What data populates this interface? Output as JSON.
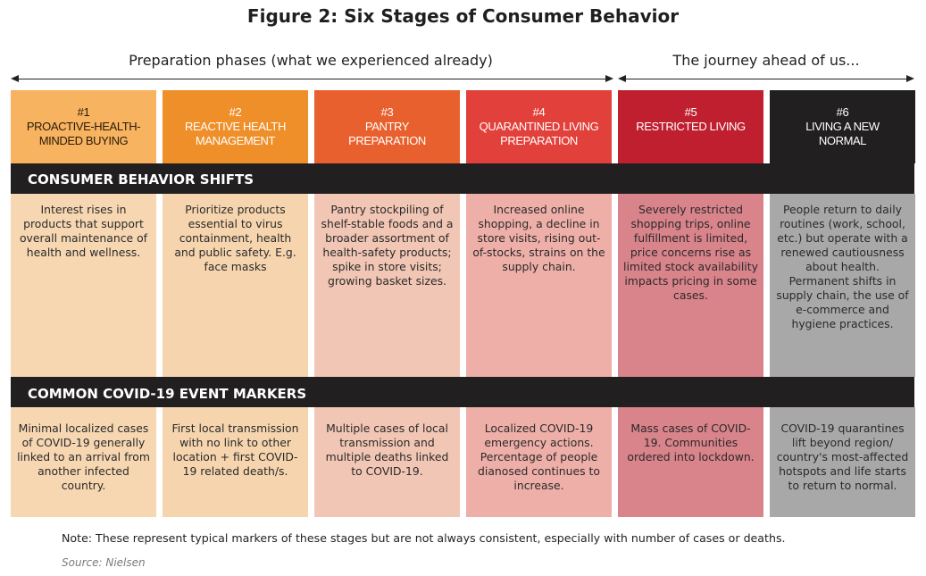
{
  "title": "Figure 2: Six Stages of Consumer Behavior",
  "phases": {
    "left": "Preparation phases (what we experienced already)",
    "right": "The journey ahead of us..."
  },
  "stages": [
    {
      "number": "#1",
      "name": "Proactive-health-minded buying",
      "header_color": "#f7b35f",
      "text_color": "#2a1a0a",
      "shift": "Interest rises in products that support overall maintenance of health and wellness.",
      "marker": "Minimal localized cases of COVID-19 generally linked to an arrival from another infected country.",
      "body_color": "#f7d7b2"
    },
    {
      "number": "#2",
      "name": "Reactive health management",
      "header_color": "#ef8f2a",
      "text_color": "#ffffff",
      "shift": "Prioritize products essential to virus containment, health and public safety. E.g. face masks",
      "marker": "First local transmission with no link to other location + first COVID-19 related death/s.",
      "body_color": "#f6d5ae"
    },
    {
      "number": "#3",
      "name": "Pantry preparation",
      "header_color": "#e8602d",
      "text_color": "#ffffff",
      "shift": "Pantry stockpiling of shelf-stable foods and a broader assortment of health-safety products; spike in store visits; growing basket sizes.",
      "marker": "Multiple cases of local transmission and multiple deaths linked to COVID-19.",
      "body_color": "#f2c6b4"
    },
    {
      "number": "#4",
      "name": "Quarantined living preparation",
      "header_color": "#e2403b",
      "text_color": "#ffffff",
      "shift": "Increased online shopping, a decline in store visits, rising out-of-stocks, strains on the supply chain.",
      "marker": "Localized COVID-19 emergency actions. Percentage of people dianosed continues to increase.",
      "body_color": "#efafa9"
    },
    {
      "number": "#5",
      "name": "Restricted living",
      "header_color": "#c01f2f",
      "text_color": "#ffffff",
      "shift": "Severely restricted shopping trips, online fulfillment is limited, price concerns rise as limited stock availability impacts pricing in some cases.",
      "marker": "Mass cases of COVID-19. Communities ordered into lockdown.",
      "body_color": "#d9838b"
    },
    {
      "number": "#6",
      "name": "Living a new normal",
      "header_color": "#221f20",
      "text_color": "#ffffff",
      "shift": "People return to daily routines (work, school, etc.) but operate with a renewed cautiousness about health. Permanent shifts in supply chain, the use of e-commerce and hygiene practices.",
      "marker": "COVID-19 quarantines lift beyond region/ country's most-affected hotspots and life starts to return to normal.",
      "body_color": "#a8a8a8"
    }
  ],
  "bands": {
    "shifts": "CONSUMER BEHAVIOR SHIFTS",
    "markers": "COMMON COVID-19 EVENT MARKERS"
  },
  "note": "Note: These represent typical markers of these stages but are not always consistent, especially with number of cases or deaths.",
  "source": "Source: Nielsen"
}
